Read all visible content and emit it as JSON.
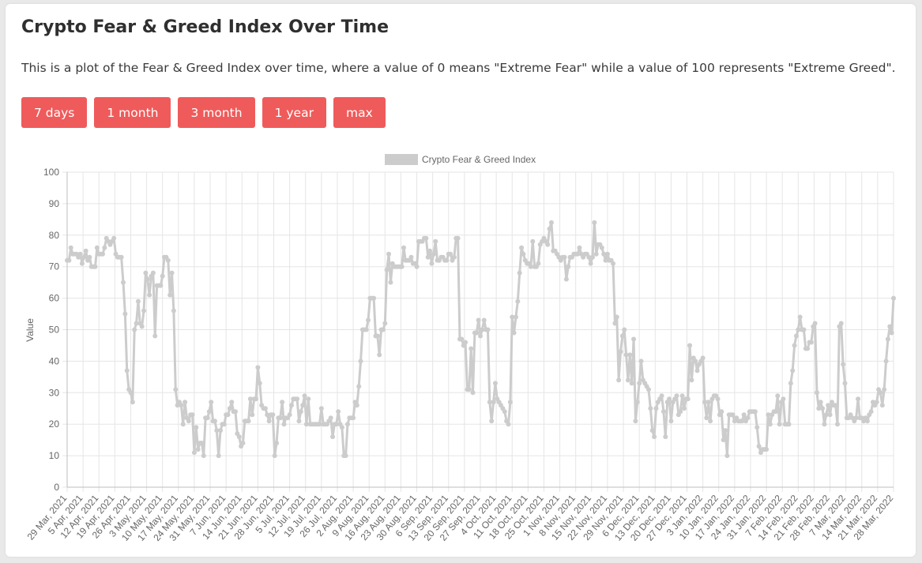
{
  "page": {
    "title": "Crypto Fear & Greed Index Over Time",
    "description": "This is a plot of the Fear & Greed Index over time, where a value of 0 means \"Extreme Fear\" while a value of 100 represents \"Extreme Greed\"."
  },
  "buttons": [
    {
      "label": "7 days"
    },
    {
      "label": "1 month"
    },
    {
      "label": "3 month"
    },
    {
      "label": "1 year"
    },
    {
      "label": "max"
    }
  ],
  "colors": {
    "accent": "#ef5b5b",
    "series": "#cccccc",
    "grid": "#e5e5e5",
    "text": "#666666"
  },
  "chart_data": {
    "type": "line",
    "title": "",
    "xlabel": "",
    "ylabel": "Value",
    "ylim": [
      0,
      100
    ],
    "yticks": [
      0,
      10,
      20,
      30,
      40,
      50,
      60,
      70,
      80,
      90,
      100
    ],
    "grid": true,
    "legend_position": "top",
    "x_tick_labels": [
      "29 Mar, 2021",
      "5 Apr, 2021",
      "12 Apr, 2021",
      "19 Apr, 2021",
      "26 Apr, 2021",
      "3 May, 2021",
      "10 May, 2021",
      "17 May, 2021",
      "24 May, 2021",
      "31 May, 2021",
      "7 Jun, 2021",
      "14 Jun, 2021",
      "21 Jun, 2021",
      "28 Jun, 2021",
      "5 Jul, 2021",
      "12 Jul, 2021",
      "19 Jul, 2021",
      "26 Jul, 2021",
      "2 Aug, 2021",
      "9 Aug, 2021",
      "16 Aug, 2021",
      "23 Aug, 2021",
      "30 Aug, 2021",
      "6 Sep, 2021",
      "13 Sep, 2021",
      "20 Sep, 2021",
      "27 Sep, 2021",
      "4 Oct, 2021",
      "11 Oct, 2021",
      "18 Oct, 2021",
      "25 Oct, 2021",
      "1 Nov, 2021",
      "8 Nov, 2021",
      "15 Nov, 2021",
      "22 Nov, 2021",
      "29 Nov, 2021",
      "6 Dec, 2021",
      "13 Dec, 2021",
      "20 Dec, 2021",
      "27 Dec, 2021",
      "3 Jan, 2022",
      "10 Jan, 2022",
      "17 Jan, 2022",
      "24 Jan, 2022",
      "31 Jan, 2022",
      "7 Feb, 2022",
      "14 Feb, 2022",
      "21 Feb, 2022",
      "28 Feb, 2022",
      "7 Mar, 2022",
      "14 Mar, 2022",
      "21 Mar, 2022",
      "28 Mar, 2022"
    ],
    "series": [
      {
        "name": "Crypto Fear & Greed Index",
        "start_date": "29 Mar, 2021",
        "step": "1 day",
        "values": [
          72,
          72,
          76,
          74,
          74,
          74,
          73,
          74,
          71,
          73,
          75,
          72,
          73,
          70,
          70,
          70,
          76,
          74,
          74,
          74,
          76,
          79,
          78,
          77,
          78,
          79,
          74,
          73,
          73,
          73,
          65,
          55,
          37,
          31,
          30,
          27,
          50,
          52,
          59,
          52,
          51,
          56,
          68,
          66,
          61,
          67,
          68,
          48,
          64,
          64,
          64,
          67,
          73,
          73,
          72,
          61,
          68,
          56,
          31,
          26,
          27,
          26,
          20,
          27,
          22,
          21,
          23,
          23,
          11,
          19,
          12,
          14,
          14,
          10,
          22,
          22,
          24,
          27,
          21,
          21,
          18,
          10,
          18,
          20,
          20,
          23,
          23,
          25,
          27,
          24,
          24,
          17,
          16,
          13,
          14,
          21,
          21,
          21,
          28,
          23,
          28,
          28,
          38,
          33,
          26,
          25,
          25,
          23,
          21,
          23,
          23,
          10,
          14,
          22,
          22,
          27,
          20,
          22,
          22,
          23,
          26,
          28,
          28,
          28,
          21,
          24,
          26,
          29,
          20,
          28,
          20,
          20,
          20,
          20,
          20,
          20,
          25,
          20,
          20,
          20,
          21,
          22,
          16,
          20,
          20,
          24,
          20,
          19,
          10,
          10,
          20,
          22,
          22,
          22,
          27,
          26,
          32,
          40,
          50,
          50,
          50,
          53,
          60,
          60,
          60,
          48,
          48,
          42,
          50,
          50,
          52,
          69,
          74,
          65,
          71,
          70,
          70,
          70,
          70,
          70,
          76,
          72,
          72,
          72,
          73,
          71,
          71,
          70,
          78,
          78,
          78,
          79,
          79,
          73,
          75,
          71,
          74,
          78,
          72,
          72,
          73,
          73,
          72,
          72,
          74,
          74,
          72,
          73,
          79,
          79,
          47,
          47,
          45,
          46,
          31,
          31,
          44,
          30,
          49,
          49,
          53,
          48,
          50,
          53,
          50,
          50,
          27,
          21,
          27,
          33,
          28,
          27,
          26,
          25,
          24,
          21,
          20,
          27,
          54,
          49,
          54,
          59,
          68,
          76,
          74,
          72,
          71,
          71,
          70,
          78,
          70,
          70,
          71,
          77,
          78,
          79,
          78,
          77,
          82,
          84,
          75,
          75,
          74,
          73,
          72,
          73,
          73,
          66,
          70,
          73,
          73,
          74,
          74,
          74,
          76,
          74,
          73,
          74,
          74,
          73,
          71,
          73,
          84,
          74,
          77,
          77,
          76,
          74,
          72,
          74,
          72,
          72,
          71,
          52,
          54,
          34,
          43,
          48,
          50,
          42,
          34,
          42,
          33,
          47,
          21,
          27,
          33,
          40,
          34,
          33,
          32,
          31,
          25,
          18,
          16,
          25,
          27,
          28,
          29,
          24,
          16,
          27,
          28,
          21,
          27,
          28,
          29,
          23,
          24,
          29,
          25,
          28,
          28,
          45,
          34,
          41,
          40,
          37,
          39,
          40,
          41,
          27,
          22,
          27,
          21,
          28,
          29,
          29,
          28,
          23,
          24,
          15,
          18,
          10,
          23,
          23,
          23,
          21,
          22,
          21,
          21,
          21,
          23,
          21,
          22,
          24,
          24,
          24,
          24,
          19,
          13,
          11,
          12,
          12,
          12,
          23,
          20,
          23,
          24,
          24,
          29,
          20,
          27,
          28,
          20,
          20,
          20,
          33,
          37,
          45,
          48,
          50,
          54,
          50,
          50,
          44,
          44,
          46,
          46,
          51,
          52,
          30,
          25,
          27,
          25,
          20,
          23,
          26,
          23,
          27,
          26,
          26,
          20,
          51,
          52,
          39,
          33,
          22,
          22,
          23,
          22,
          21,
          22,
          28,
          22,
          22,
          21,
          22,
          21,
          23,
          24,
          27,
          26,
          27,
          31,
          30,
          26,
          31,
          40,
          47,
          51,
          49,
          60
        ]
      }
    ]
  }
}
